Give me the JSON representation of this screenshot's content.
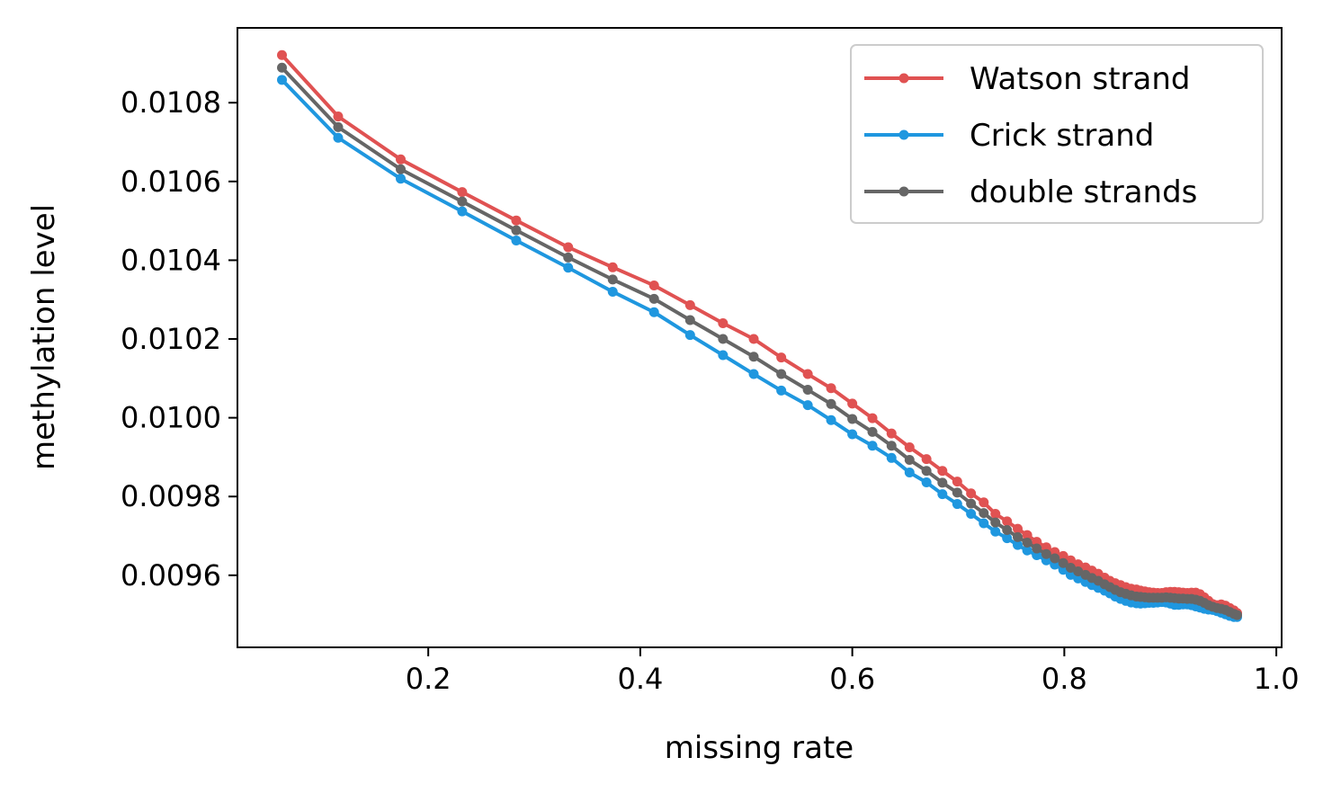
{
  "chart_data": {
    "type": "line",
    "title": "",
    "xlabel": "missing rate",
    "ylabel": "methylation level",
    "xlim": [
      0.02,
      1.005
    ],
    "ylim": [
      0.009417,
      0.01099
    ],
    "xticks": [
      0.2,
      0.4,
      0.6,
      0.8,
      1.0
    ],
    "xtick_labels": [
      "0.2",
      "0.4",
      "0.6",
      "0.8",
      "1.0"
    ],
    "yticks": [
      0.0096,
      0.0098,
      0.01,
      0.0102,
      0.0104,
      0.0106,
      0.0108
    ],
    "ytick_labels": [
      "0.0096",
      "0.0098",
      "0.0100",
      "0.0102",
      "0.0104",
      "0.0106",
      "0.0108"
    ],
    "grid": false,
    "legend_position": "top-right",
    "x": [
      0.062,
      0.115,
      0.174,
      0.232,
      0.283,
      0.332,
      0.374,
      0.413,
      0.447,
      0.478,
      0.507,
      0.533,
      0.558,
      0.58,
      0.6,
      0.619,
      0.637,
      0.654,
      0.67,
      0.685,
      0.699,
      0.712,
      0.724,
      0.735,
      0.746,
      0.756,
      0.765,
      0.774,
      0.783,
      0.791,
      0.799,
      0.806,
      0.813,
      0.82,
      0.826,
      0.832,
      0.838,
      0.843,
      0.848,
      0.853,
      0.858,
      0.863,
      0.868,
      0.872,
      0.876,
      0.88,
      0.884,
      0.888,
      0.892,
      0.896,
      0.9,
      0.904,
      0.908,
      0.912,
      0.916,
      0.92,
      0.924,
      0.928,
      0.932,
      0.936,
      0.94,
      0.944,
      0.948,
      0.952,
      0.956,
      0.96,
      0.963
    ],
    "series": [
      {
        "name": "Watson strand",
        "color": "#e05252",
        "values": [
          0.010921,
          0.010765,
          0.010656,
          0.010573,
          0.010501,
          0.010433,
          0.010382,
          0.010336,
          0.010286,
          0.01024,
          0.0102,
          0.010153,
          0.010111,
          0.010075,
          0.010036,
          0.009999,
          0.00996,
          0.009925,
          0.009895,
          0.009865,
          0.009838,
          0.009808,
          0.009785,
          0.009756,
          0.009737,
          0.009718,
          0.009702,
          0.009685,
          0.009671,
          0.009659,
          0.009649,
          0.009638,
          0.009628,
          0.00962,
          0.009612,
          0.009604,
          0.009594,
          0.009586,
          0.00958,
          0.009575,
          0.00957,
          0.009566,
          0.009564,
          0.009561,
          0.009559,
          0.009557,
          0.009556,
          0.009555,
          0.009555,
          0.009557,
          0.009558,
          0.009558,
          0.009557,
          0.009556,
          0.009555,
          0.009556,
          0.009556,
          0.009552,
          0.009544,
          0.009535,
          0.009527,
          0.009524,
          0.009526,
          0.009523,
          0.009517,
          0.009511,
          0.009504
        ]
      },
      {
        "name": "Crick strand",
        "color": "#1f97df",
        "values": [
          0.010858,
          0.010711,
          0.010607,
          0.010524,
          0.01045,
          0.010381,
          0.01032,
          0.010268,
          0.01021,
          0.010159,
          0.010111,
          0.010069,
          0.010032,
          0.009994,
          0.009958,
          0.009929,
          0.009898,
          0.009861,
          0.009836,
          0.009806,
          0.009781,
          0.009756,
          0.009732,
          0.009711,
          0.009694,
          0.009677,
          0.009663,
          0.009651,
          0.009638,
          0.009627,
          0.009614,
          0.009601,
          0.009592,
          0.009583,
          0.009575,
          0.009568,
          0.009561,
          0.009554,
          0.009546,
          0.00954,
          0.009535,
          0.009531,
          0.009529,
          0.009528,
          0.009529,
          0.00953,
          0.00953,
          0.009531,
          0.009532,
          0.009531,
          0.009528,
          0.009525,
          0.009525,
          0.009526,
          0.009526,
          0.009524,
          0.009521,
          0.009518,
          0.009515,
          0.009513,
          0.009512,
          0.009509,
          0.009505,
          0.009501,
          0.009497,
          0.009494,
          0.009494
        ]
      },
      {
        "name": "double strands",
        "color": "#666666",
        "values": [
          0.010889,
          0.010738,
          0.010631,
          0.010549,
          0.010476,
          0.010407,
          0.010351,
          0.010302,
          0.010248,
          0.0102,
          0.010155,
          0.010111,
          0.010071,
          0.010035,
          0.009997,
          0.009964,
          0.009929,
          0.009893,
          0.009865,
          0.009835,
          0.00981,
          0.009782,
          0.009758,
          0.009734,
          0.009715,
          0.009697,
          0.009683,
          0.009668,
          0.009654,
          0.009643,
          0.009631,
          0.009619,
          0.00961,
          0.009601,
          0.009593,
          0.009586,
          0.009577,
          0.00957,
          0.009563,
          0.009557,
          0.009553,
          0.009549,
          0.009546,
          0.009545,
          0.009544,
          0.009543,
          0.009543,
          0.009543,
          0.009543,
          0.009544,
          0.009543,
          0.009542,
          0.009541,
          0.009541,
          0.00954,
          0.00954,
          0.009538,
          0.009535,
          0.00953,
          0.009524,
          0.00952,
          0.009517,
          0.009515,
          0.009512,
          0.009507,
          0.009502,
          0.009499
        ]
      }
    ]
  }
}
